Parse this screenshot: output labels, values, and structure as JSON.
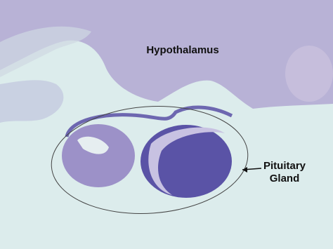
{
  "annotations": [
    {
      "lines": [
        "Hypothalamus"
      ]
    },
    {
      "lines": [
        "Pituitary",
        "Gland"
      ]
    }
  ]
}
